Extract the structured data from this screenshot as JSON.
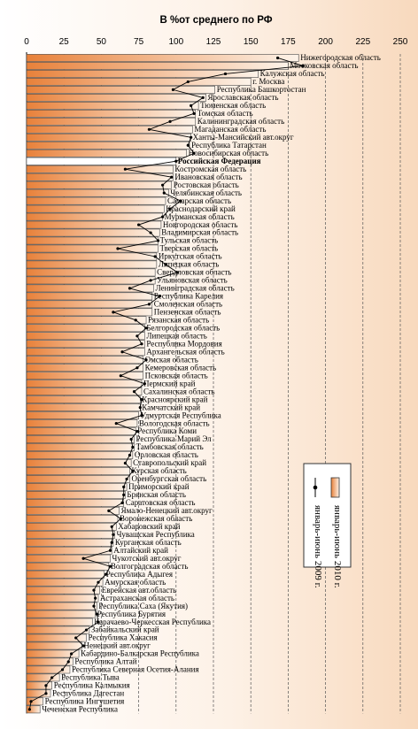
{
  "chart_data": {
    "type": "bar",
    "title": "В %от среднего по РФ",
    "xlim": [
      0,
      250
    ],
    "xticks": [
      0,
      25,
      50,
      75,
      100,
      125,
      150,
      175,
      200,
      225,
      250
    ],
    "gridlines": "vertical-dashed",
    "legend_position": "bottom-right",
    "highlight_region": "Российская Федерация",
    "colors": {
      "bar_gradient_left": "#e8813a",
      "bar_gradient_right": "#fdf3e9",
      "bar_border": "#4a4a4a",
      "highlight_fill": "#ffffff",
      "line": "#000000"
    },
    "series": [
      {
        "name": "январь-июнь 2010 г.",
        "kind": "bar"
      },
      {
        "name": "январь-июнь 2009 г.",
        "kind": "line-with-markers"
      }
    ],
    "regions": [
      {
        "name": "Нижегородская область",
        "v2010": 182,
        "v2009": 168
      },
      {
        "name": "Московская область",
        "v2010": 175,
        "v2009": 185
      },
      {
        "name": "Калужская область",
        "v2010": 155,
        "v2009": 133
      },
      {
        "name": "г. Москва",
        "v2010": 150,
        "v2009": 108
      },
      {
        "name": "Республика Башкортостан",
        "v2010": 126,
        "v2009": 98
      },
      {
        "name": "Ярославская область",
        "v2010": 120,
        "v2009": 118
      },
      {
        "name": "Тюменская область",
        "v2010": 115,
        "v2009": 110
      },
      {
        "name": "Томская область",
        "v2010": 113,
        "v2009": 112
      },
      {
        "name": "Калининградская область",
        "v2010": 113,
        "v2009": 96
      },
      {
        "name": "Магаданская область",
        "v2010": 111,
        "v2009": 82
      },
      {
        "name": "Ханты-Мансийский авт.округ",
        "v2010": 110,
        "v2009": 110
      },
      {
        "name": "Республика Татарстан",
        "v2010": 109,
        "v2009": 108
      },
      {
        "name": "Новосибирская область",
        "v2010": 107,
        "v2009": 112
      },
      {
        "name": "Российская Федерация",
        "v2010": 100,
        "v2009": 100
      },
      {
        "name": "Костромская область",
        "v2010": 98,
        "v2009": 66
      },
      {
        "name": "Ивановская область",
        "v2010": 98,
        "v2009": 97
      },
      {
        "name": "Ростовская область",
        "v2010": 97,
        "v2009": 91
      },
      {
        "name": "Челябинская область",
        "v2010": 95,
        "v2009": 92
      },
      {
        "name": "Самарская область",
        "v2010": 93,
        "v2009": 103
      },
      {
        "name": "Краснодарский край",
        "v2010": 92,
        "v2009": 96
      },
      {
        "name": "Мурманская область",
        "v2010": 91,
        "v2009": 91
      },
      {
        "name": "Новгородская область",
        "v2010": 90,
        "v2009": 75
      },
      {
        "name": "Владимирская область",
        "v2010": 89,
        "v2009": 83
      },
      {
        "name": "Тульская область",
        "v2010": 88,
        "v2009": 88
      },
      {
        "name": "Тверская область",
        "v2010": 88,
        "v2009": 61
      },
      {
        "name": "Иркутская область",
        "v2010": 87,
        "v2009": 86
      },
      {
        "name": "Липецкая область",
        "v2010": 87,
        "v2009": 93
      },
      {
        "name": "Свердловская область",
        "v2010": 86,
        "v2009": 101
      },
      {
        "name": "Ульяновская область",
        "v2010": 86,
        "v2009": 83
      },
      {
        "name": "Ленинградская область",
        "v2010": 85,
        "v2009": 69
      },
      {
        "name": "Республика Карелия",
        "v2010": 84,
        "v2009": 89
      },
      {
        "name": "Смоленская область",
        "v2010": 84,
        "v2009": 82
      },
      {
        "name": "Пензенская область",
        "v2010": 84,
        "v2009": 58
      },
      {
        "name": "Рязанская область",
        "v2010": 80,
        "v2009": 73
      },
      {
        "name": "Белгородская область",
        "v2010": 79,
        "v2009": 80
      },
      {
        "name": "Липецкая область",
        "v2010": 79,
        "v2009": 74
      },
      {
        "name": "Республика Мордовия",
        "v2010": 79,
        "v2009": 77
      },
      {
        "name": "Архангельская область",
        "v2010": 79,
        "v2009": 64
      },
      {
        "name": "Омская область",
        "v2010": 78,
        "v2009": 80
      },
      {
        "name": "Кемеровская область",
        "v2010": 78,
        "v2009": 74
      },
      {
        "name": "Псковская область",
        "v2010": 78,
        "v2009": 63
      },
      {
        "name": "Пермский край",
        "v2010": 77,
        "v2009": 79
      },
      {
        "name": "Сахалинская область",
        "v2010": 77,
        "v2009": 72
      },
      {
        "name": "Красноярский край",
        "v2010": 76,
        "v2009": 77
      },
      {
        "name": "Камчатский край",
        "v2010": 76,
        "v2009": 76
      },
      {
        "name": "Удмуртская Республика",
        "v2010": 75,
        "v2009": 77
      },
      {
        "name": "Вологодская область",
        "v2010": 74,
        "v2009": 60
      },
      {
        "name": "Республика Коми",
        "v2010": 73,
        "v2009": 74
      },
      {
        "name": "Республика Марий Эл",
        "v2010": 72,
        "v2009": 70
      },
      {
        "name": "Тамбовская область",
        "v2010": 72,
        "v2009": 71
      },
      {
        "name": "Орловская область",
        "v2010": 71,
        "v2009": 69
      },
      {
        "name": "Ставропольский край",
        "v2010": 70,
        "v2009": 66
      },
      {
        "name": "Курская область",
        "v2010": 69,
        "v2009": 71
      },
      {
        "name": "Оренбургская область",
        "v2010": 69,
        "v2009": 67
      },
      {
        "name": "Приморский край",
        "v2010": 67,
        "v2009": 65
      },
      {
        "name": "Брянская область",
        "v2010": 66,
        "v2009": 65
      },
      {
        "name": "Саратовская область",
        "v2010": 65,
        "v2009": 64
      },
      {
        "name": "Ямало-Ненецкий авт.округ",
        "v2010": 62,
        "v2009": 55
      },
      {
        "name": "Воронежская область",
        "v2010": 61,
        "v2009": 63
      },
      {
        "name": "Хабаровский край",
        "v2010": 60,
        "v2009": 57
      },
      {
        "name": "Чувашская Республика",
        "v2010": 59,
        "v2009": 58
      },
      {
        "name": "Курганская область",
        "v2010": 58,
        "v2009": 57
      },
      {
        "name": "Алтайский край",
        "v2010": 57,
        "v2009": 56
      },
      {
        "name": "Чукотский авт.округ",
        "v2010": 56,
        "v2009": 38
      },
      {
        "name": "Волгоградская область",
        "v2010": 55,
        "v2009": 56
      },
      {
        "name": "Республика Адыгея",
        "v2010": 52,
        "v2009": 53
      },
      {
        "name": "Амурская область",
        "v2010": 51,
        "v2009": 48
      },
      {
        "name": "Еврейская авт.область",
        "v2010": 49,
        "v2009": 45
      },
      {
        "name": "Астраханская область",
        "v2010": 48,
        "v2009": 46
      },
      {
        "name": "Республика Саха (Якутия)",
        "v2010": 47,
        "v2009": 45
      },
      {
        "name": "Республика Бурятия",
        "v2010": 46,
        "v2009": 47
      },
      {
        "name": "Карачаево-Черкесская Республика",
        "v2010": 44,
        "v2009": 48
      },
      {
        "name": "Забайкальский край",
        "v2010": 42,
        "v2009": 40
      },
      {
        "name": "Республика Хакасия",
        "v2010": 40,
        "v2009": 33
      },
      {
        "name": "Ненецкий авт.округ",
        "v2010": 37,
        "v2009": 38
      },
      {
        "name": "Кабардино-Балкарская Республика",
        "v2010": 35,
        "v2009": 30
      },
      {
        "name": "Республика Алтай",
        "v2010": 31,
        "v2009": 28
      },
      {
        "name": "Республика Северная Осетия-Алания",
        "v2010": 29,
        "v2009": 24
      },
      {
        "name": "Республика Тыва",
        "v2010": 22,
        "v2009": 17
      },
      {
        "name": "Республика Калмыкия",
        "v2010": 17,
        "v2009": 13
      },
      {
        "name": "Республика Дагестан",
        "v2010": 16,
        "v2009": 13
      },
      {
        "name": "Республика Ингушетия",
        "v2010": 11,
        "v2009": 3
      },
      {
        "name": "Чеченская Республика",
        "v2010": 9,
        "v2009": 2
      }
    ]
  }
}
